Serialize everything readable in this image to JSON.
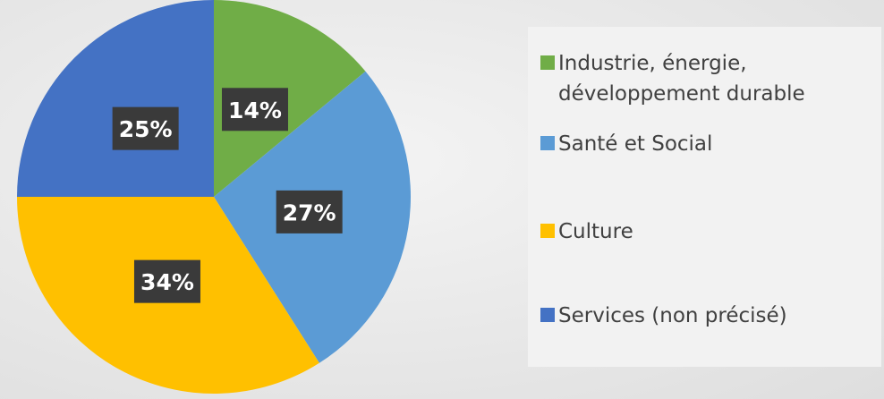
{
  "chart_data": {
    "type": "pie",
    "categories": [
      "Industrie, énergie, développement durable",
      "Santé et Social",
      "Culture",
      "Services (non précisé)"
    ],
    "values": [
      14,
      27,
      34,
      25
    ],
    "value_labels": [
      "14%",
      "27%",
      "34%",
      "25%"
    ],
    "colors": [
      "#70ad47",
      "#5b9bd5",
      "#ffc000",
      "#4472c4"
    ],
    "legend": "right"
  }
}
